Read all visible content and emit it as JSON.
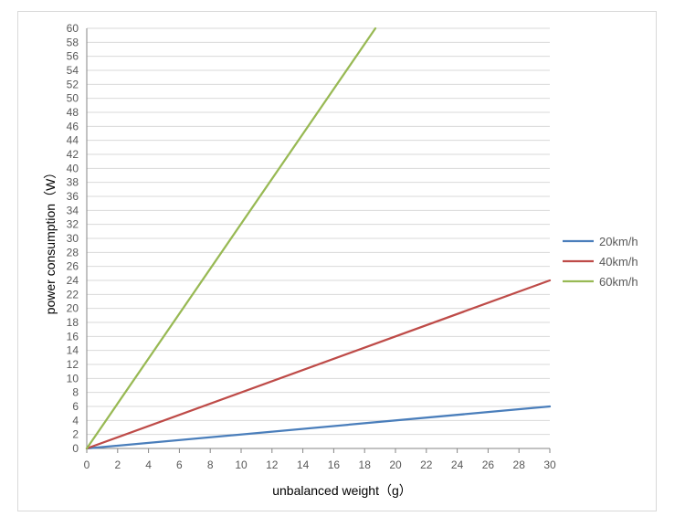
{
  "chart_data": {
    "type": "line",
    "title": "",
    "xlabel": "unbalanced weight（g）",
    "ylabel": "power consumption（W）",
    "xlim": [
      0,
      30
    ],
    "ylim": [
      0,
      60
    ],
    "x_ticks": [
      0,
      2,
      4,
      6,
      8,
      10,
      12,
      14,
      16,
      18,
      20,
      22,
      24,
      26,
      28,
      30
    ],
    "y_ticks": [
      0,
      2,
      4,
      6,
      8,
      10,
      12,
      14,
      16,
      18,
      20,
      22,
      24,
      26,
      28,
      30,
      32,
      34,
      36,
      38,
      40,
      42,
      44,
      46,
      48,
      50,
      52,
      54,
      56,
      58,
      60
    ],
    "grid": "horizontal",
    "legend_position": "right",
    "series": [
      {
        "name": "20km/h",
        "color": "#4a7ebb",
        "points": [
          [
            0,
            0
          ],
          [
            30,
            6
          ]
        ]
      },
      {
        "name": "40km/h",
        "color": "#be4b48",
        "points": [
          [
            0,
            0
          ],
          [
            30,
            24
          ]
        ]
      },
      {
        "name": "60km/h",
        "color": "#98b954",
        "points": [
          [
            0,
            0
          ],
          [
            18.7,
            60
          ]
        ]
      }
    ]
  }
}
